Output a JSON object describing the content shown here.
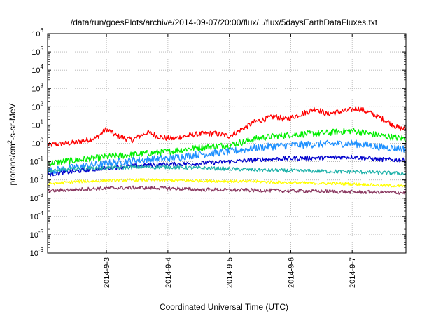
{
  "chart_data": {
    "type": "line",
    "title": "/data/run/goesPlots/archive/2014-09-07/20:00/flux/../flux/5daysEarthDataFluxes.txt",
    "xlabel": "Coordinated Universal Time (UTC)",
    "ylabel_parts": {
      "base": "protons/cm",
      "sup": "2",
      "rest": "-s-sr-MeV"
    },
    "xlim": [
      "2014-09-02 01:00",
      "2014-09-07 21:00"
    ],
    "x_ticks": [
      "2014-9-3",
      "2014-9-4",
      "2014-9-5",
      "2014-9-6",
      "2014-9-7"
    ],
    "y_scale": "log",
    "ylim": [
      1e-06,
      1000000.0
    ],
    "y_ticks": [
      {
        "base": "10",
        "exp": "-6"
      },
      {
        "base": "10",
        "exp": "-5"
      },
      {
        "base": "10",
        "exp": "-4"
      },
      {
        "base": "10",
        "exp": "-3"
      },
      {
        "base": "10",
        "exp": "-2"
      },
      {
        "base": "10",
        "exp": "-1"
      },
      {
        "base": "10",
        "exp": "0"
      },
      {
        "base": "10",
        "exp": "1"
      },
      {
        "base": "10",
        "exp": "2"
      },
      {
        "base": "10",
        "exp": "3"
      },
      {
        "base": "10",
        "exp": "4"
      },
      {
        "base": "10",
        "exp": "5"
      },
      {
        "base": "10",
        "exp": "6"
      }
    ],
    "grid": true,
    "series": [
      {
        "color": "#ff0000",
        "noise": 0.15,
        "points": [
          [
            "2014-09-02 01:00",
            0.8
          ],
          [
            "2014-09-02 12:00",
            1.1
          ],
          [
            "2014-09-02 20:00",
            2.0
          ],
          [
            "2014-09-03 00:00",
            6.0
          ],
          [
            "2014-09-03 04:00",
            2.5
          ],
          [
            "2014-09-03 10:00",
            1.5
          ],
          [
            "2014-09-03 16:00",
            4.0
          ],
          [
            "2014-09-03 22:00",
            2.0
          ],
          [
            "2014-09-04 02:00",
            1.8
          ],
          [
            "2014-09-04 10:00",
            3.0
          ],
          [
            "2014-09-04 18:00",
            3.5
          ],
          [
            "2014-09-05 00:00",
            2.5
          ],
          [
            "2014-09-05 04:00",
            5.0
          ],
          [
            "2014-09-05 10:00",
            15.0
          ],
          [
            "2014-09-05 18:00",
            30.0
          ],
          [
            "2014-09-05 22:00",
            20.0
          ],
          [
            "2014-09-06 04:00",
            40.0
          ],
          [
            "2014-09-06 10:00",
            80.0
          ],
          [
            "2014-09-06 14:00",
            40.0
          ],
          [
            "2014-09-06 18:00",
            50.0
          ],
          [
            "2014-09-06 22:00",
            60.0
          ],
          [
            "2014-09-07 02:00",
            85.0
          ],
          [
            "2014-09-07 08:00",
            40.0
          ],
          [
            "2014-09-07 14:00",
            15.0
          ],
          [
            "2014-09-07 18:00",
            7.0
          ],
          [
            "2014-09-07 21:00",
            6.0
          ]
        ]
      },
      {
        "color": "#00ee00",
        "noise": 0.18,
        "points": [
          [
            "2014-09-02 01:00",
            0.08
          ],
          [
            "2014-09-02 12:00",
            0.12
          ],
          [
            "2014-09-03 00:00",
            0.18
          ],
          [
            "2014-09-03 12:00",
            0.25
          ],
          [
            "2014-09-04 00:00",
            0.35
          ],
          [
            "2014-09-04 12:00",
            0.6
          ],
          [
            "2014-09-05 00:00",
            0.8
          ],
          [
            "2014-09-05 12:00",
            2.0
          ],
          [
            "2014-09-06 00:00",
            3.0
          ],
          [
            "2014-09-06 12:00",
            3.5
          ],
          [
            "2014-09-07 00:00",
            5.0
          ],
          [
            "2014-09-07 12:00",
            2.5
          ],
          [
            "2014-09-07 21:00",
            1.8
          ]
        ]
      },
      {
        "color": "#1e90ff",
        "noise": 0.2,
        "points": [
          [
            "2014-09-02 01:00",
            0.03
          ],
          [
            "2014-09-02 12:00",
            0.05
          ],
          [
            "2014-09-03 00:00",
            0.08
          ],
          [
            "2014-09-03 12:00",
            0.12
          ],
          [
            "2014-09-04 00:00",
            0.15
          ],
          [
            "2014-09-04 12:00",
            0.25
          ],
          [
            "2014-09-05 00:00",
            0.35
          ],
          [
            "2014-09-05 12:00",
            0.6
          ],
          [
            "2014-09-06 00:00",
            0.8
          ],
          [
            "2014-09-06 12:00",
            0.9
          ],
          [
            "2014-09-07 00:00",
            1.0
          ],
          [
            "2014-09-07 12:00",
            0.6
          ],
          [
            "2014-09-07 21:00",
            0.5
          ]
        ]
      },
      {
        "color": "#0000cc",
        "noise": 0.12,
        "points": [
          [
            "2014-09-02 01:00",
            0.02
          ],
          [
            "2014-09-02 12:00",
            0.03
          ],
          [
            "2014-09-03 00:00",
            0.045
          ],
          [
            "2014-09-03 12:00",
            0.06
          ],
          [
            "2014-09-04 00:00",
            0.07
          ],
          [
            "2014-09-04 12:00",
            0.08
          ],
          [
            "2014-09-05 00:00",
            0.1
          ],
          [
            "2014-09-05 12:00",
            0.13
          ],
          [
            "2014-09-06 00:00",
            0.15
          ],
          [
            "2014-09-06 12:00",
            0.16
          ],
          [
            "2014-09-07 00:00",
            0.18
          ],
          [
            "2014-09-07 12:00",
            0.13
          ],
          [
            "2014-09-07 21:00",
            0.12
          ]
        ]
      },
      {
        "color": "#20b2aa",
        "noise": 0.1,
        "points": [
          [
            "2014-09-02 01:00",
            0.03
          ],
          [
            "2014-09-02 12:00",
            0.04
          ],
          [
            "2014-09-03 00:00",
            0.045
          ],
          [
            "2014-09-03 12:00",
            0.05
          ],
          [
            "2014-09-04 00:00",
            0.05
          ],
          [
            "2014-09-04 12:00",
            0.045
          ],
          [
            "2014-09-05 00:00",
            0.04
          ],
          [
            "2014-09-05 12:00",
            0.035
          ],
          [
            "2014-09-06 00:00",
            0.032
          ],
          [
            "2014-09-06 12:00",
            0.03
          ],
          [
            "2014-09-07 00:00",
            0.028
          ],
          [
            "2014-09-07 12:00",
            0.025
          ],
          [
            "2014-09-07 21:00",
            0.022
          ]
        ]
      },
      {
        "color": "#ffff00",
        "noise": 0.08,
        "points": [
          [
            "2014-09-02 01:00",
            0.006
          ],
          [
            "2014-09-02 12:00",
            0.008
          ],
          [
            "2014-09-03 00:00",
            0.009
          ],
          [
            "2014-09-03 12:00",
            0.01
          ],
          [
            "2014-09-04 00:00",
            0.0095
          ],
          [
            "2014-09-04 12:00",
            0.009
          ],
          [
            "2014-09-05 00:00",
            0.0085
          ],
          [
            "2014-09-05 12:00",
            0.008
          ],
          [
            "2014-09-06 00:00",
            0.007
          ],
          [
            "2014-09-06 12:00",
            0.0065
          ],
          [
            "2014-09-07 00:00",
            0.006
          ],
          [
            "2014-09-07 12:00",
            0.005
          ],
          [
            "2014-09-07 21:00",
            0.0045
          ]
        ]
      },
      {
        "color": "#8b3a62",
        "noise": 0.1,
        "points": [
          [
            "2014-09-02 01:00",
            0.0025
          ],
          [
            "2014-09-02 12:00",
            0.003
          ],
          [
            "2014-09-03 00:00",
            0.0035
          ],
          [
            "2014-09-03 12:00",
            0.0038
          ],
          [
            "2014-09-04 00:00",
            0.0035
          ],
          [
            "2014-09-04 12:00",
            0.003
          ],
          [
            "2014-09-05 00:00",
            0.0028
          ],
          [
            "2014-09-05 12:00",
            0.0027
          ],
          [
            "2014-09-06 00:00",
            0.0025
          ],
          [
            "2014-09-06 12:00",
            0.0024
          ],
          [
            "2014-09-07 00:00",
            0.0022
          ],
          [
            "2014-09-07 12:00",
            0.0021
          ],
          [
            "2014-09-07 21:00",
            0.002
          ]
        ]
      }
    ]
  }
}
